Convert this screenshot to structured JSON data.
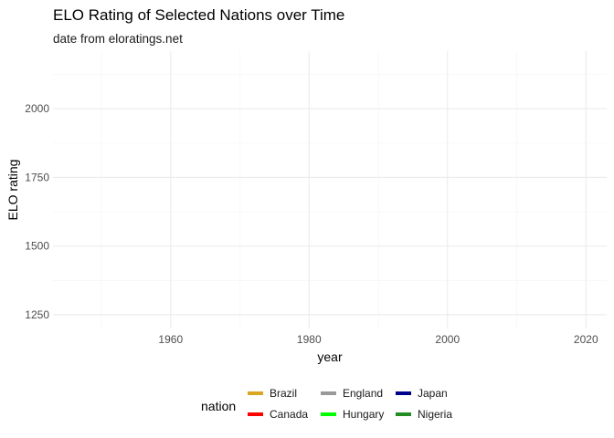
{
  "chart_data": {
    "type": "line",
    "title": "ELO Rating of Selected Nations over Time",
    "subtitle": "date from eloratings.net",
    "xlabel": "year",
    "ylabel": "ELO rating",
    "xlim": [
      1943,
      2023
    ],
    "ylim": [
      1200,
      2210
    ],
    "x_ticks": [
      1960,
      1980,
      2000,
      2020
    ],
    "x_tick_labels": [
      "1960",
      "1980",
      "2000",
      "2020"
    ],
    "x_minor_ticks": [
      1950,
      1970,
      1990,
      2010
    ],
    "y_ticks": [
      1250,
      1500,
      1750,
      2000
    ],
    "y_tick_labels": [
      "1250",
      "1500",
      "1750",
      "2000"
    ],
    "y_minor_ticks": [
      1375,
      1625,
      1875,
      2125
    ],
    "grid": true,
    "legend": {
      "title": "nation",
      "position": "bottom",
      "entries": [
        {
          "name": "Brazil",
          "color": "#DAA520"
        },
        {
          "name": "Canada",
          "color": "#FF0000"
        },
        {
          "name": "England",
          "color": "#999999"
        },
        {
          "name": "Hungary",
          "color": "#00FF00"
        },
        {
          "name": "Japan",
          "color": "#00008B"
        },
        {
          "name": "Nigeria",
          "color": "#228B22"
        }
      ]
    },
    "series": [
      {
        "name": "Brazil",
        "color": "#DAA520",
        "x": [],
        "y": []
      },
      {
        "name": "Canada",
        "color": "#FF0000",
        "x": [],
        "y": []
      },
      {
        "name": "England",
        "color": "#999999",
        "x": [],
        "y": []
      },
      {
        "name": "Hungary",
        "color": "#00FF00",
        "x": [],
        "y": []
      },
      {
        "name": "Japan",
        "color": "#00008B",
        "x": [],
        "y": []
      },
      {
        "name": "Nigeria",
        "color": "#228B22",
        "x": [],
        "y": []
      }
    ]
  }
}
